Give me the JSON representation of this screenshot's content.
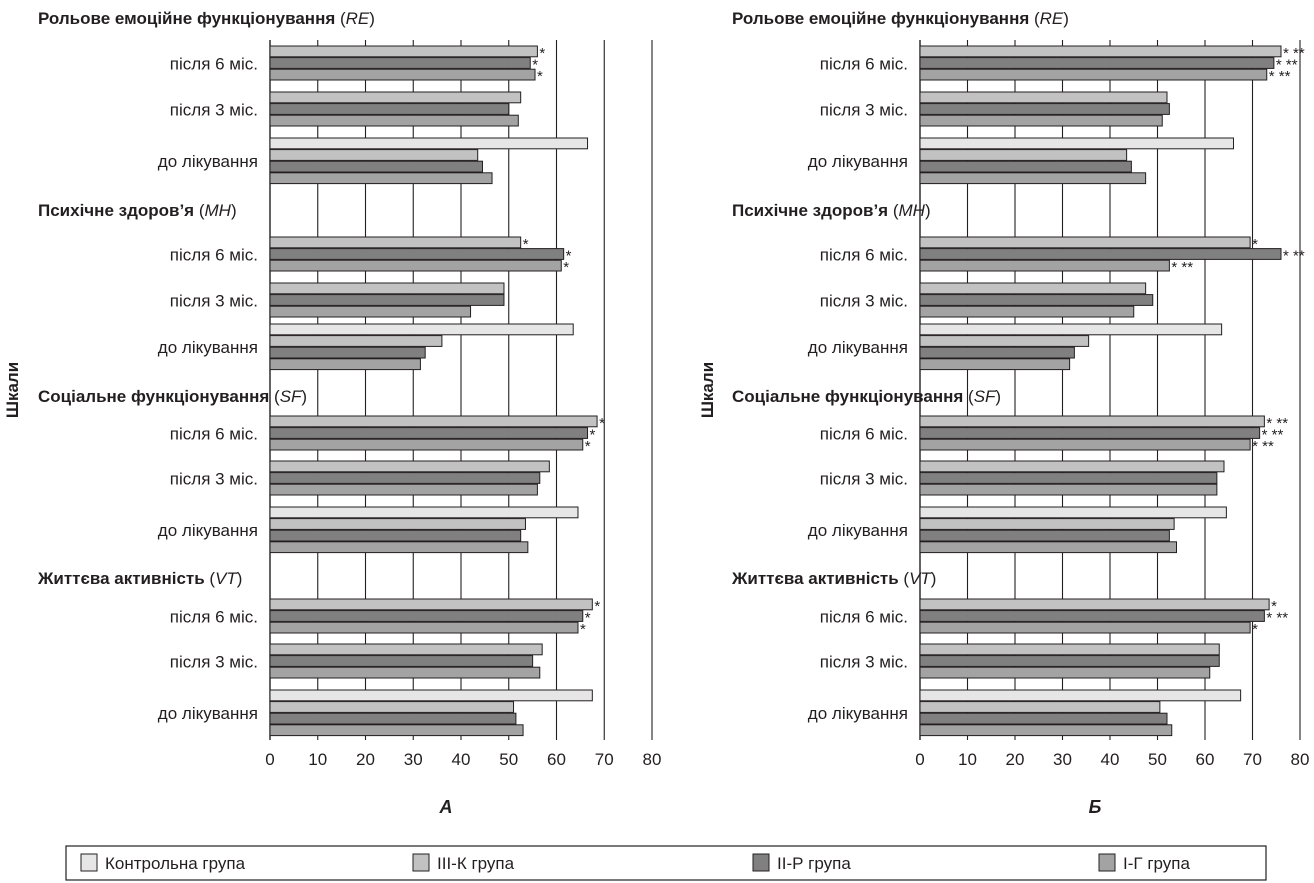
{
  "y_axis_label": "Шкали",
  "legend": [
    {
      "label": "Контрольна група",
      "color": "#e6e6e6"
    },
    {
      "label": "III-К група",
      "color": "#c2c2c2"
    },
    {
      "label": "II-Р група",
      "color": "#808080"
    },
    {
      "label": "I-Г група",
      "color": "#a3a3a3"
    }
  ],
  "chart_data": [
    {
      "type": "bar",
      "orientation": "horizontal",
      "panel_label": "А",
      "xlim": [
        0,
        80
      ],
      "x_ticks": [
        0,
        10,
        20,
        30,
        40,
        50,
        60,
        70,
        80
      ],
      "grid": true,
      "series_names": [
        "Контрольна група",
        "III-К група",
        "II-Р група",
        "I-Г група"
      ],
      "sections": [
        {
          "title": "Рольове емоційне функціонування",
          "abbr": "RE",
          "groups": [
            {
              "label": "після 6 міс.",
              "values": [
                null,
                56,
                54.5,
                55.5
              ],
              "marks": [
                "",
                "*",
                "*",
                "*"
              ]
            },
            {
              "label": "після 3 міс.",
              "values": [
                null,
                52.5,
                50,
                52
              ],
              "marks": [
                "",
                "",
                "",
                ""
              ]
            },
            {
              "label": "до лікування",
              "values": [
                66.5,
                43.5,
                44.5,
                46.5
              ],
              "marks": [
                "",
                "",
                "",
                ""
              ]
            }
          ]
        },
        {
          "title": "Психічне здоров’я",
          "abbr": "MH",
          "groups": [
            {
              "label": "після 6 міс.",
              "values": [
                null,
                52.5,
                61.5,
                61
              ],
              "marks": [
                "",
                "*",
                "*",
                "*"
              ]
            },
            {
              "label": "після 3 міс.",
              "values": [
                null,
                49,
                49,
                42
              ],
              "marks": [
                "",
                "",
                "",
                ""
              ]
            },
            {
              "label": "до лікування",
              "values": [
                63.5,
                36,
                32.5,
                31.5
              ],
              "marks": [
                "",
                "",
                "",
                ""
              ]
            }
          ]
        },
        {
          "title": "Соціальне функціонування",
          "abbr": "SF",
          "groups": [
            {
              "label": "після 6 міс.",
              "values": [
                null,
                68.5,
                66.5,
                65.5
              ],
              "marks": [
                "",
                "*",
                "*",
                "*"
              ]
            },
            {
              "label": "після 3 міс.",
              "values": [
                null,
                58.5,
                56.5,
                56
              ],
              "marks": [
                "",
                "",
                "",
                ""
              ]
            },
            {
              "label": "до лікування",
              "values": [
                64.5,
                53.5,
                52.5,
                54
              ],
              "marks": [
                "",
                "",
                "",
                ""
              ]
            }
          ]
        },
        {
          "title": "Життєва активність",
          "abbr": "VT",
          "groups": [
            {
              "label": "після 6 міс.",
              "values": [
                null,
                67.5,
                65.5,
                64.5
              ],
              "marks": [
                "",
                "*",
                "*",
                "*"
              ]
            },
            {
              "label": "після 3 міс.",
              "values": [
                null,
                57,
                55,
                56.5
              ],
              "marks": [
                "",
                "",
                "",
                ""
              ]
            },
            {
              "label": "до лікування",
              "values": [
                67.5,
                51,
                51.5,
                53
              ],
              "marks": [
                "",
                "",
                "",
                ""
              ]
            }
          ]
        }
      ]
    },
    {
      "type": "bar",
      "orientation": "horizontal",
      "panel_label": "Б",
      "xlim": [
        0,
        80
      ],
      "x_ticks": [
        0,
        10,
        20,
        30,
        40,
        50,
        60,
        70,
        80
      ],
      "grid": true,
      "series_names": [
        "Контрольна група",
        "III-К група",
        "II-Р група",
        "I-Г група"
      ],
      "sections": [
        {
          "title": "Рольове емоційне функціонування",
          "abbr": "RE",
          "groups": [
            {
              "label": "після 6 міс.",
              "values": [
                null,
                76,
                74.5,
                73
              ],
              "marks": [
                "",
                "* **",
                "* **",
                "* **"
              ]
            },
            {
              "label": "після 3 міс.",
              "values": [
                null,
                52,
                52.5,
                51
              ],
              "marks": [
                "",
                "",
                "",
                ""
              ]
            },
            {
              "label": "до лікування",
              "values": [
                66,
                43.5,
                44.5,
                47.5
              ],
              "marks": [
                "",
                "",
                "",
                ""
              ]
            }
          ]
        },
        {
          "title": "Психічне здоров’я",
          "abbr": "MH",
          "groups": [
            {
              "label": "після 6 міс.",
              "values": [
                null,
                69.5,
                76,
                52.5
              ],
              "marks": [
                "",
                "*",
                "* **",
                "* **"
              ]
            },
            {
              "label": "після 3 міс.",
              "values": [
                null,
                47.5,
                49,
                45
              ],
              "marks": [
                "",
                "",
                "",
                ""
              ]
            },
            {
              "label": "до лікування",
              "values": [
                63.5,
                35.5,
                32.5,
                31.5
              ],
              "marks": [
                "",
                "",
                "",
                ""
              ]
            }
          ]
        },
        {
          "title": "Соціальне функціонування",
          "abbr": "SF",
          "groups": [
            {
              "label": "після 6 міс.",
              "values": [
                null,
                72.5,
                71.5,
                69.5
              ],
              "marks": [
                "",
                "* **",
                "* **",
                "* **"
              ]
            },
            {
              "label": "після 3 міс.",
              "values": [
                null,
                64,
                62.5,
                62.5
              ],
              "marks": [
                "",
                "",
                "",
                ""
              ]
            },
            {
              "label": "до лікування",
              "values": [
                64.5,
                53.5,
                52.5,
                54
              ],
              "marks": [
                "",
                "",
                "",
                ""
              ]
            }
          ]
        },
        {
          "title": "Життєва активність",
          "abbr": "VT",
          "groups": [
            {
              "label": "після 6 міс.",
              "values": [
                null,
                73.5,
                72.5,
                69.5
              ],
              "marks": [
                "",
                "*",
                "* **",
                "*"
              ]
            },
            {
              "label": "після 3 міс.",
              "values": [
                null,
                63,
                63,
                61
              ],
              "marks": [
                "",
                "",
                "",
                ""
              ]
            },
            {
              "label": "до лікування",
              "values": [
                67.5,
                50.5,
                52,
                53
              ],
              "marks": [
                "",
                "",
                "",
                ""
              ]
            }
          ]
        }
      ]
    }
  ]
}
